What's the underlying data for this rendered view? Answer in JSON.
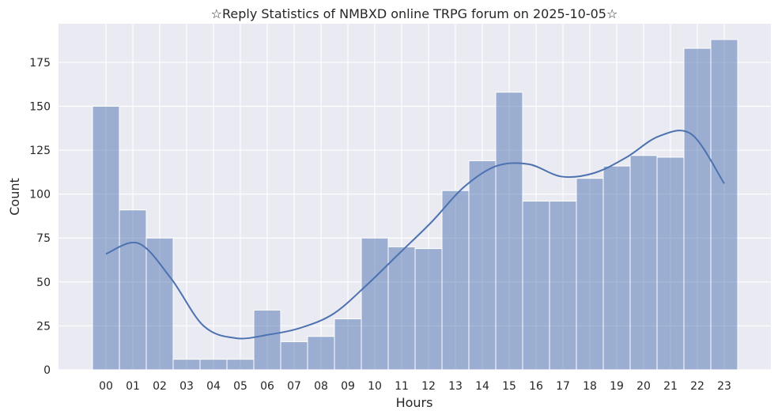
{
  "chart_data": {
    "type": "bar",
    "title": "☆Reply Statistics of NMBXD online TRPG forum on 2025-10-05☆",
    "xlabel": "Hours",
    "ylabel": "Count",
    "categories": [
      "00",
      "01",
      "02",
      "03",
      "04",
      "05",
      "06",
      "07",
      "08",
      "09",
      "10",
      "11",
      "12",
      "13",
      "14",
      "15",
      "16",
      "17",
      "18",
      "19",
      "20",
      "21",
      "22",
      "23"
    ],
    "values": [
      150,
      91,
      75,
      6,
      6,
      6,
      34,
      16,
      19,
      29,
      75,
      70,
      69,
      102,
      119,
      158,
      96,
      96,
      109,
      116,
      122,
      121,
      183,
      188
    ],
    "kde": [
      66,
      72,
      52,
      25,
      18,
      20,
      24,
      32,
      48,
      66,
      84,
      104,
      116,
      117,
      110,
      112,
      121,
      133,
      134,
      106
    ],
    "kde_x_start": 0,
    "kde_x_end": 23,
    "ylim": [
      0,
      197
    ],
    "yticks": [
      0,
      25,
      50,
      75,
      100,
      125,
      150,
      175
    ],
    "grid": true,
    "legend": "none",
    "colors": {
      "background": "#eaeaf2",
      "bar_fill": "#4c72b0",
      "bar_opacity": 0.5,
      "kde_line": "#4c72b0",
      "grid": "#ffffff"
    }
  }
}
